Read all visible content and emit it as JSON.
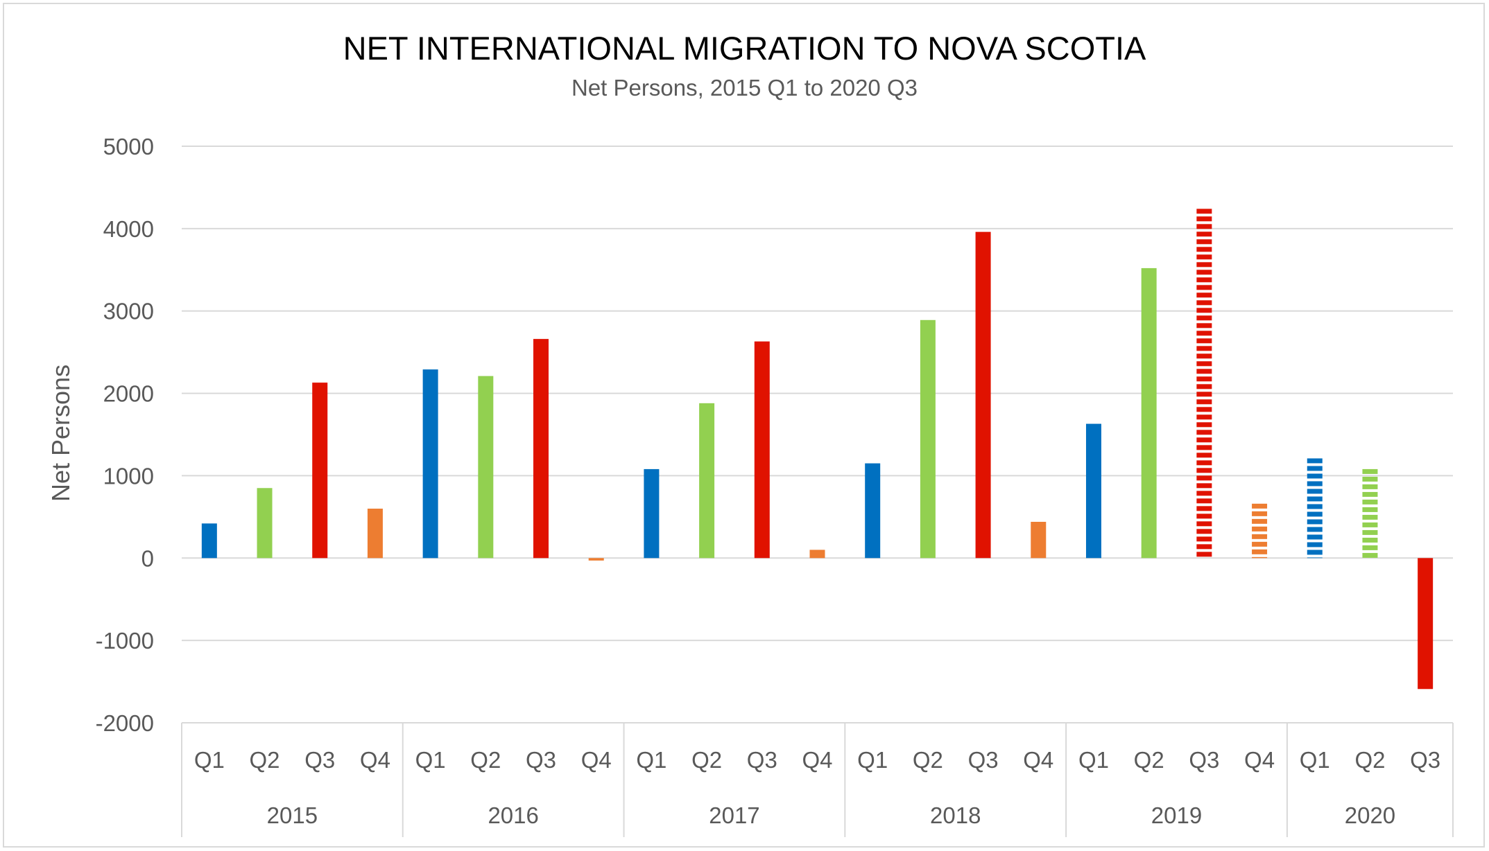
{
  "chart_data": {
    "type": "bar",
    "title": "NET INTERNATIONAL MIGRATION TO NOVA SCOTIA",
    "subtitle": "Net Persons, 2015 Q1 to 2020 Q3",
    "ylabel": "Net Persons",
    "xlabel": "",
    "ylim": [
      -2000,
      5000
    ],
    "yticks": [
      5000,
      4000,
      3000,
      2000,
      1000,
      0,
      -1000,
      -2000
    ],
    "grid": true,
    "legend": "none",
    "quarter_colors": {
      "Q1": "#0070c0",
      "Q2": "#92d050",
      "Q3": "#e01200",
      "Q4": "#ed7d31"
    },
    "groups": [
      {
        "year": "2015",
        "quarters": [
          "Q1",
          "Q2",
          "Q3",
          "Q4"
        ]
      },
      {
        "year": "2016",
        "quarters": [
          "Q1",
          "Q2",
          "Q3",
          "Q4"
        ]
      },
      {
        "year": "2017",
        "quarters": [
          "Q1",
          "Q2",
          "Q3",
          "Q4"
        ]
      },
      {
        "year": "2018",
        "quarters": [
          "Q1",
          "Q2",
          "Q3",
          "Q4"
        ]
      },
      {
        "year": "2019",
        "quarters": [
          "Q1",
          "Q2",
          "Q3",
          "Q4"
        ]
      },
      {
        "year": "2020",
        "quarters": [
          "Q1",
          "Q2",
          "Q3"
        ]
      }
    ],
    "values": [
      420,
      850,
      2130,
      600,
      2290,
      2210,
      2660,
      -30,
      1080,
      1880,
      2630,
      100,
      1150,
      2890,
      3960,
      440,
      1630,
      3520,
      4240,
      660,
      1210,
      1080,
      -1590
    ],
    "dashed": [
      false,
      false,
      false,
      false,
      false,
      false,
      false,
      false,
      false,
      false,
      false,
      false,
      false,
      false,
      false,
      false,
      false,
      false,
      true,
      true,
      true,
      true,
      false
    ]
  }
}
